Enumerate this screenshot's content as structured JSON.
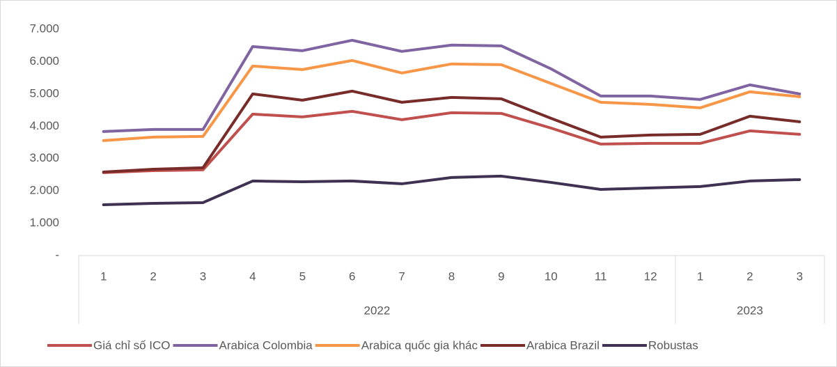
{
  "chart_data": {
    "type": "line",
    "categories": [
      "1",
      "2",
      "3",
      "4",
      "5",
      "6",
      "7",
      "8",
      "9",
      "10",
      "11",
      "12",
      "1",
      "2",
      "3"
    ],
    "groups": [
      {
        "name": "2022",
        "categories": 12
      },
      {
        "name": "2023",
        "categories": 3
      }
    ],
    "ylim": [
      0,
      7000
    ],
    "yticks": [
      {
        "value": 0,
        "label": "-"
      },
      {
        "value": 1000,
        "label": "1.000"
      },
      {
        "value": 2000,
        "label": "2.000"
      },
      {
        "value": 3000,
        "label": "3.000"
      },
      {
        "value": 4000,
        "label": "4.000"
      },
      {
        "value": 5000,
        "label": "5.000"
      },
      {
        "value": 6000,
        "label": "6.000"
      },
      {
        "value": 7000,
        "label": "7.000"
      }
    ],
    "legend": "bottom",
    "series": [
      {
        "name": "Giá chỉ số ICO",
        "color": "#c0504d",
        "values": [
          2565,
          2629,
          2651,
          4375,
          4289,
          4461,
          4203,
          4418,
          4397,
          3944,
          3448,
          3470,
          3470,
          3858,
          3750
        ]
      },
      {
        "name": "Arabica Colombia",
        "color": "#8064a2",
        "values": [
          3836,
          3900,
          3900,
          6465,
          6336,
          6660,
          6315,
          6509,
          6487,
          5776,
          4935,
          4935,
          4828,
          5280,
          5000
        ]
      },
      {
        "name": "Arabica quốc gia khác",
        "color": "#f79646",
        "values": [
          3556,
          3664,
          3685,
          5862,
          5754,
          6034,
          5647,
          5927,
          5905,
          5323,
          4741,
          4677,
          4569,
          5065,
          4914
        ]
      },
      {
        "name": "Arabica Brazil",
        "color": "#772c2a",
        "values": [
          2586,
          2672,
          2716,
          5000,
          4806,
          5086,
          4741,
          4892,
          4849,
          4246,
          3664,
          3728,
          3750,
          4310,
          4138
        ]
      },
      {
        "name": "Robustas",
        "color": "#3f3151",
        "values": [
          1573,
          1616,
          1638,
          2306,
          2284,
          2306,
          2220,
          2414,
          2457,
          2263,
          2047,
          2091,
          2134,
          2306,
          2349
        ]
      }
    ]
  }
}
